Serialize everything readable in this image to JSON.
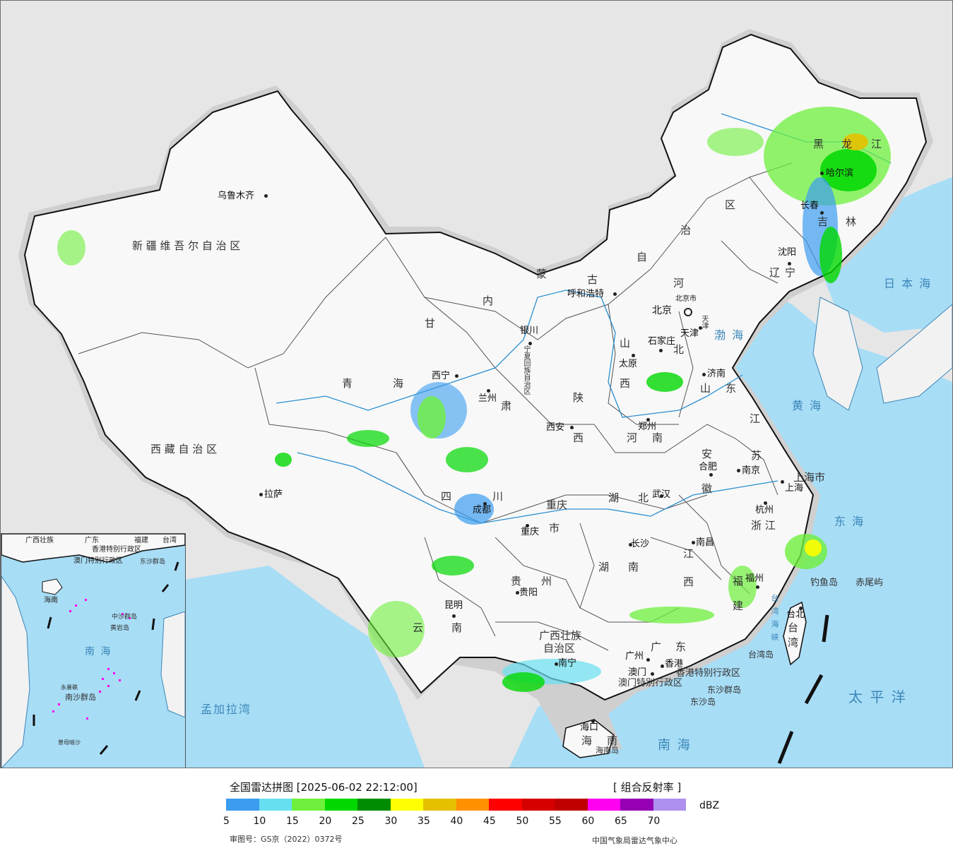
{
  "map": {
    "provinces": [
      {
        "key": "xinjiang",
        "text": "新 疆 维 吾 尔 自 治 区"
      },
      {
        "key": "xizang",
        "text": "西 藏 自 治 区"
      },
      {
        "key": "qinghai_1",
        "text": "青"
      },
      {
        "key": "qinghai_2",
        "text": "海"
      },
      {
        "key": "gansu_1",
        "text": "甘"
      },
      {
        "key": "gansu_2",
        "text": "肃"
      },
      {
        "key": "neimeng_1",
        "text": "内"
      },
      {
        "key": "neimeng_2",
        "text": "蒙"
      },
      {
        "key": "neimeng_3",
        "text": "古"
      },
      {
        "key": "neimeng_4",
        "text": "自"
      },
      {
        "key": "neimeng_5",
        "text": "治"
      },
      {
        "key": "neimeng_6",
        "text": "区"
      },
      {
        "key": "heilongjiang_1",
        "text": "黑"
      },
      {
        "key": "heilongjiang_2",
        "text": "龙"
      },
      {
        "key": "heilongjiang_3",
        "text": "江"
      },
      {
        "key": "jilin_1",
        "text": "吉"
      },
      {
        "key": "jilin_2",
        "text": "林"
      },
      {
        "key": "liaoning_1",
        "text": "辽"
      },
      {
        "key": "liaoning_2",
        "text": "宁"
      },
      {
        "key": "hebei_1",
        "text": "河"
      },
      {
        "key": "hebei_2",
        "text": "北"
      },
      {
        "key": "shanxi_1",
        "text": "山"
      },
      {
        "key": "shanxi_2",
        "text": "西"
      },
      {
        "key": "shaanxi_1",
        "text": "陕"
      },
      {
        "key": "shaanxi_2",
        "text": "西"
      },
      {
        "key": "shandong_1",
        "text": "山"
      },
      {
        "key": "shandong_2",
        "text": "东"
      },
      {
        "key": "henan_1",
        "text": "河"
      },
      {
        "key": "henan_2",
        "text": "南"
      },
      {
        "key": "jiangsu_1",
        "text": "江"
      },
      {
        "key": "jiangsu_2",
        "text": "苏"
      },
      {
        "key": "anhui_1",
        "text": "安"
      },
      {
        "key": "anhui_2",
        "text": "徽"
      },
      {
        "key": "shanghai",
        "text": "上海市"
      },
      {
        "key": "zhejiang",
        "text": "浙 江"
      },
      {
        "key": "sichuan_1",
        "text": "四"
      },
      {
        "key": "sichuan_2",
        "text": "川"
      },
      {
        "key": "chongqing_1",
        "text": "重庆"
      },
      {
        "key": "chongqing_2",
        "text": "市"
      },
      {
        "key": "hubei_1",
        "text": "湖"
      },
      {
        "key": "hubei_2",
        "text": "北"
      },
      {
        "key": "hunan_1",
        "text": "湖"
      },
      {
        "key": "hunan_2",
        "text": "南"
      },
      {
        "key": "jiangxi_1",
        "text": "江"
      },
      {
        "key": "jiangxi_2",
        "text": "西"
      },
      {
        "key": "guizhou_1",
        "text": "贵"
      },
      {
        "key": "guizhou_2",
        "text": "州"
      },
      {
        "key": "yunnan_1",
        "text": "云"
      },
      {
        "key": "yunnan_2",
        "text": "南"
      },
      {
        "key": "guangxi_1",
        "text": "广西壮族"
      },
      {
        "key": "guangxi_2",
        "text": "自治区"
      },
      {
        "key": "guangdong_1",
        "text": "广"
      },
      {
        "key": "guangdong_2",
        "text": "东"
      },
      {
        "key": "fujian_1",
        "text": "福"
      },
      {
        "key": "fujian_2",
        "text": "建"
      },
      {
        "key": "taiwan_1",
        "text": "台"
      },
      {
        "key": "taiwan_2",
        "text": "湾"
      },
      {
        "key": "hainan_1",
        "text": "海"
      },
      {
        "key": "hainan_2",
        "text": "南"
      },
      {
        "key": "tianjin",
        "text": "天津"
      },
      {
        "key": "ningxia",
        "text": "宁夏回族自治区"
      },
      {
        "key": "hongkong",
        "text": "香港特别行政区"
      },
      {
        "key": "macao",
        "text": "澳门特别行政区"
      }
    ],
    "cities": [
      {
        "key": "urumqi",
        "text": "乌鲁木齐"
      },
      {
        "key": "lhasa",
        "text": "拉萨"
      },
      {
        "key": "xining",
        "text": "西宁"
      },
      {
        "key": "lanzhou",
        "text": "兰州"
      },
      {
        "key": "yinchuan",
        "text": "银川"
      },
      {
        "key": "hohhot",
        "text": "呼和浩特"
      },
      {
        "key": "harbin",
        "text": "哈尔滨"
      },
      {
        "key": "changchun",
        "text": "长春"
      },
      {
        "key": "shenyang",
        "text": "沈阳"
      },
      {
        "key": "beijing",
        "text": "北京"
      },
      {
        "key": "beijing_city",
        "text": "北京市"
      },
      {
        "key": "tianjin",
        "text": "天津"
      },
      {
        "key": "shijiazhuang",
        "text": "石家庄"
      },
      {
        "key": "taiyuan",
        "text": "太原"
      },
      {
        "key": "jinan",
        "text": "济南"
      },
      {
        "key": "xian",
        "text": "西安"
      },
      {
        "key": "zhengzhou",
        "text": "郑州"
      },
      {
        "key": "hefei",
        "text": "合肥"
      },
      {
        "key": "nanjing",
        "text": "南京"
      },
      {
        "key": "shanghai",
        "text": "上海"
      },
      {
        "key": "hangzhou",
        "text": "杭州"
      },
      {
        "key": "chengdu",
        "text": "成都"
      },
      {
        "key": "chongqing",
        "text": "重庆"
      },
      {
        "key": "wuhan",
        "text": "武汉"
      },
      {
        "key": "changsha",
        "text": "长沙"
      },
      {
        "key": "nanchang",
        "text": "南昌"
      },
      {
        "key": "guiyang",
        "text": "贵阳"
      },
      {
        "key": "kunming",
        "text": "昆明"
      },
      {
        "key": "nanning",
        "text": "南宁"
      },
      {
        "key": "guangzhou",
        "text": "广州"
      },
      {
        "key": "hongkong",
        "text": "香港"
      },
      {
        "key": "macao",
        "text": "澳门"
      },
      {
        "key": "fuzhou",
        "text": "福州"
      },
      {
        "key": "taibei",
        "text": "台北"
      },
      {
        "key": "haikou",
        "text": "海口"
      }
    ],
    "seas": [
      {
        "key": "bohai",
        "text": "渤 海"
      },
      {
        "key": "huanghai",
        "text": "黄 海"
      },
      {
        "key": "donghai",
        "text": "东 海"
      },
      {
        "key": "riben",
        "text": "日 本 海"
      },
      {
        "key": "taiping",
        "text": "太 平 洋"
      },
      {
        "key": "nanhai",
        "text": "南 海"
      },
      {
        "key": "mengjiala",
        "text": "孟加拉湾"
      },
      {
        "key": "taiwan_strait",
        "text": "台 湾 海 峡"
      }
    ],
    "islands": [
      {
        "key": "diaoyu",
        "text": "钓鱼岛"
      },
      {
        "key": "chiwei",
        "text": "赤尾屿"
      },
      {
        "key": "taiwan_island",
        "text": "台湾岛"
      },
      {
        "key": "hainan_island",
        "text": "海南岛"
      },
      {
        "key": "dongsha_islands",
        "text": "东沙群岛"
      },
      {
        "key": "dongsha_island",
        "text": "东沙岛"
      }
    ],
    "inset": {
      "labels": [
        {
          "key": "guangxi",
          "text": "广西壮族"
        },
        {
          "key": "guangdong",
          "text": "广东"
        },
        {
          "key": "fujian",
          "text": "福建"
        },
        {
          "key": "taiwan",
          "text": "台湾"
        },
        {
          "key": "hongkong",
          "text": "香港特别行政区"
        },
        {
          "key": "macao",
          "text": "澳门特别行政区"
        },
        {
          "key": "dongsha",
          "text": "东沙群岛"
        },
        {
          "key": "hainan",
          "text": "海南"
        },
        {
          "key": "zhongsha",
          "text": "中沙群岛"
        },
        {
          "key": "huangyan",
          "text": "黄岩岛"
        },
        {
          "key": "nanhai",
          "text": "南 海"
        },
        {
          "key": "nansha",
          "text": "南沙群岛"
        },
        {
          "key": "yongshu",
          "text": "永暑礁"
        },
        {
          "key": "zengmu",
          "text": "曾母暗沙"
        }
      ]
    }
  },
  "legend": {
    "title": "全国雷达拼图 [2025-06-02 22:12:00]",
    "product": "[ 组合反射率 ]",
    "unit": "dBZ",
    "colors": [
      "#3b9cf0",
      "#66e0f0",
      "#6ef03c",
      "#00d800",
      "#008c00",
      "#fefe00",
      "#e6c000",
      "#ff9000",
      "#ff0000",
      "#d60000",
      "#c00000",
      "#ff00f0",
      "#9600b4",
      "#ad90f0"
    ],
    "ticks": [
      "5",
      "10",
      "15",
      "20",
      "25",
      "30",
      "35",
      "40",
      "45",
      "50",
      "55",
      "60",
      "65",
      "70"
    ],
    "review_no": "审图号：GS京（2022）0372号",
    "source": "中国气象局雷达气象中心"
  }
}
